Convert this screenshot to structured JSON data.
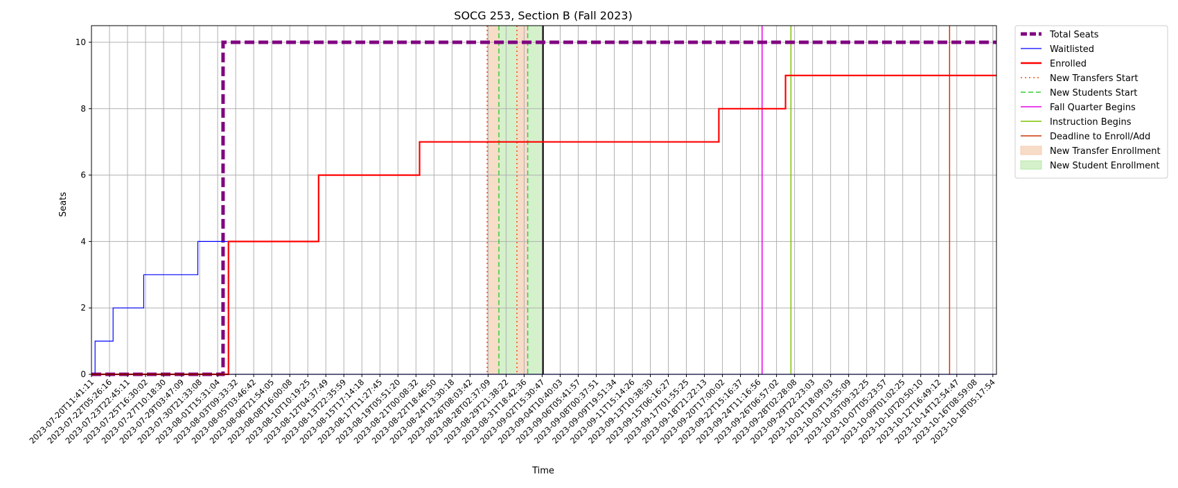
{
  "chart_data": {
    "type": "line",
    "title": "SOCG 253, Section B (Fall 2023)",
    "xlabel": "Time",
    "ylabel": "Seats",
    "ylim": [
      0,
      10.5
    ],
    "yticks": [
      0,
      2,
      4,
      6,
      8,
      10
    ],
    "xlim_tick_index": [
      0,
      50.2
    ],
    "x_ticks": [
      "2023-07-20T11:41:11",
      "2023-07-22T05:26:16",
      "2023-07-23T22:45:11",
      "2023-07-25T16:30:02",
      "2023-07-27T10:18:30",
      "2023-07-29T03:47:09",
      "2023-07-30T21:33:08",
      "2023-08-01T15:31:04",
      "2023-08-03T09:33:32",
      "2023-08-05T03:46:42",
      "2023-08-06T21:54:05",
      "2023-08-08T16:00:08",
      "2023-08-10T10:19:25",
      "2023-08-12T04:37:49",
      "2023-08-13T22:35:59",
      "2023-08-15T17:14:18",
      "2023-08-17T11:27:45",
      "2023-08-19T05:51:20",
      "2023-08-21T00:08:32",
      "2023-08-22T18:46:50",
      "2023-08-24T13:30:18",
      "2023-08-26T08:03:42",
      "2023-08-28T02:37:09",
      "2023-08-29T21:38:22",
      "2023-08-31T18:42:36",
      "2023-09-02T15:30:47",
      "2023-09-04T10:40:03",
      "2023-09-06T05:41:57",
      "2023-09-08T00:37:51",
      "2023-09-09T19:51:34",
      "2023-09-11T15:14:26",
      "2023-09-13T10:38:30",
      "2023-09-15T06:16:27",
      "2023-09-17T01:55:25",
      "2023-09-18T21:22:13",
      "2023-09-20T17:00:02",
      "2023-09-22T15:16:37",
      "2023-09-24T11:16:56",
      "2023-09-26T06:57:02",
      "2023-09-28T02:28:08",
      "2023-09-29T22:23:03",
      "2023-10-01T18:09:03",
      "2023-10-03T13:55:09",
      "2023-10-05T09:32:25",
      "2023-10-07T05:23:57",
      "2023-10-09T01:02:25",
      "2023-10-10T20:50:10",
      "2023-10-12T16:49:12",
      "2023-10-14T12:54:47",
      "2023-10-16T08:59:08",
      "2023-10-18T05:17:54"
    ],
    "series": [
      {
        "name": "Total Seats",
        "style": "dashed-thick",
        "color": "#800080",
        "points": [
          [
            0,
            0
          ],
          [
            7.3,
            0
          ],
          [
            7.3,
            10
          ],
          [
            50.2,
            10
          ]
        ]
      },
      {
        "name": "Waitlisted",
        "style": "step",
        "color": "#0000ff",
        "points": [
          [
            0,
            0
          ],
          [
            0.2,
            0
          ],
          [
            0.2,
            1
          ],
          [
            1.2,
            1
          ],
          [
            1.2,
            2
          ],
          [
            2.9,
            2
          ],
          [
            2.9,
            3
          ],
          [
            5.9,
            3
          ],
          [
            5.9,
            4
          ],
          [
            7.6,
            4
          ],
          [
            7.6,
            0
          ],
          [
            50.2,
            0
          ]
        ]
      },
      {
        "name": "Enrolled",
        "style": "step",
        "color": "#ff0000",
        "points": [
          [
            0,
            0
          ],
          [
            7.6,
            0
          ],
          [
            7.6,
            4
          ],
          [
            12.6,
            4
          ],
          [
            12.6,
            6
          ],
          [
            18.2,
            6
          ],
          [
            18.2,
            7
          ],
          [
            34.8,
            7
          ],
          [
            34.8,
            8
          ],
          [
            38.5,
            8
          ],
          [
            38.5,
            9
          ],
          [
            50.2,
            9
          ]
        ]
      }
    ],
    "markers": [
      {
        "name": "New Transfers Start",
        "style": "dotted",
        "color": "#ff4500",
        "x": [
          21.95,
          23.6
        ]
      },
      {
        "name": "New Students Start",
        "style": "dashed",
        "color": "#32cd32",
        "x": [
          22.6,
          24.2
        ]
      },
      {
        "name": "Fall Quarter Begins",
        "style": "solid",
        "color": "#e600e6",
        "x": [
          37.2
        ]
      },
      {
        "name": "Instruction Begins",
        "style": "solid",
        "color": "#7fbf00",
        "x": [
          38.8
        ]
      },
      {
        "name": "Deadline to Enroll/Add",
        "style": "solid",
        "color": "#cc3300",
        "x": [
          47.6
        ]
      }
    ],
    "spans": [
      {
        "name": "New Transfer Enrollment",
        "color": "#f4cdb0",
        "opacity": 0.7,
        "ranges": [
          [
            21.95,
            22.6
          ],
          [
            23.6,
            24.2
          ]
        ]
      },
      {
        "name": "New Student Enrollment",
        "color": "#b8e8a8",
        "opacity": 0.6,
        "ranges": [
          [
            22.6,
            23.6
          ],
          [
            24.2,
            25.05
          ]
        ]
      }
    ],
    "black_line_x": 25.05,
    "legend_position": "outside-right-top",
    "grid": true
  }
}
